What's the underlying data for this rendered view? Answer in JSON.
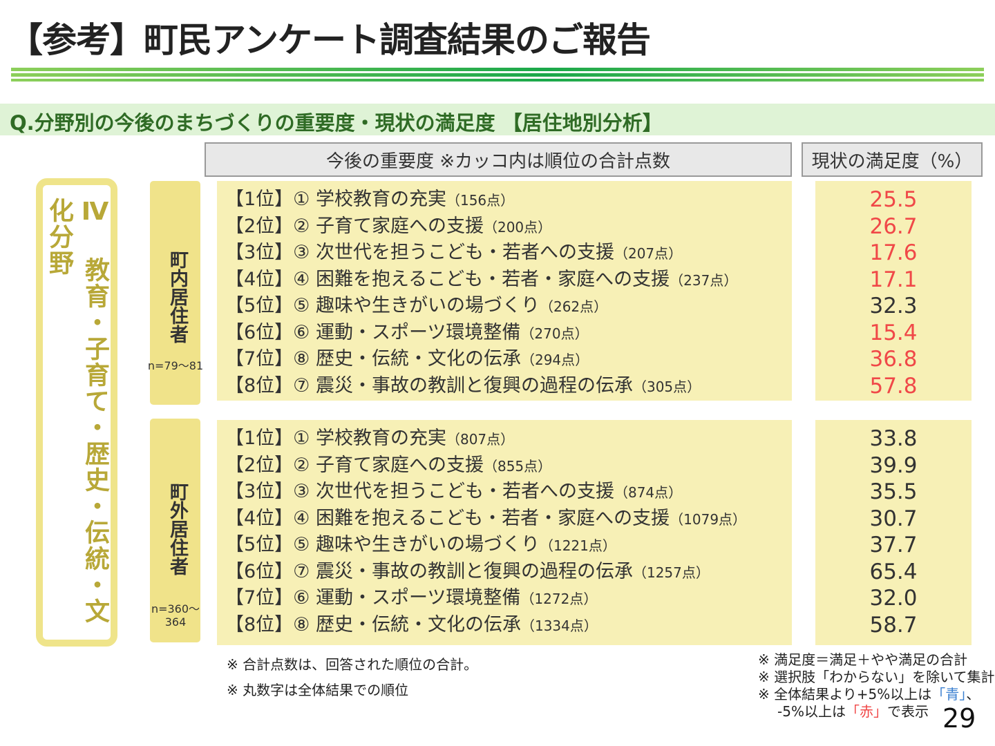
{
  "title": "【参考】町民アンケート調査結果のご報告",
  "question": "Q.分野別の今後のまちづくりの重要度・現状の満足度 【居住地別分析】",
  "header_importance": "今後の重要度 ※カッコ内は順位の合計点数",
  "header_satisfaction": "現状の満足度（%）",
  "category": "Ⅳ 教育・子育て・歴史・伝統・文化分野",
  "colors": {
    "red": "#f04848",
    "normal": "#333333",
    "blue": "#3a7fd0"
  },
  "groups": [
    {
      "label": "町内居住者",
      "n": "n=79～81",
      "rows": [
        {
          "rank": "【1位】① 学校教育の充実",
          "points": "（156点）",
          "value": "25.5",
          "color": "red"
        },
        {
          "rank": "【2位】② 子育て家庭への支援",
          "points": "（200点）",
          "value": "26.7",
          "color": "red"
        },
        {
          "rank": "【3位】③ 次世代を担うこども・若者への支援",
          "points": "（207点）",
          "value": "17.6",
          "color": "red"
        },
        {
          "rank": "【4位】④ 困難を抱えるこども・若者・家庭への支援",
          "points": "（237点）",
          "value": "17.1",
          "color": "red"
        },
        {
          "rank": "【5位】⑤ 趣味や生きがいの場づくり",
          "points": "（262点）",
          "value": "32.3",
          "color": "normal"
        },
        {
          "rank": "【6位】⑥ 運動・スポーツ環境整備",
          "points": "（270点）",
          "value": "15.4",
          "color": "red"
        },
        {
          "rank": "【7位】⑧ 歴史・伝統・文化の伝承",
          "points": "（294点）",
          "value": "36.8",
          "color": "red"
        },
        {
          "rank": "【8位】⑦ 震災・事故の教訓と復興の過程の伝承",
          "points": "（305点）",
          "value": "57.8",
          "color": "red"
        }
      ]
    },
    {
      "label": "町外居住者",
      "n": "n=360～364",
      "rows": [
        {
          "rank": "【1位】① 学校教育の充実",
          "points": "（807点）",
          "value": "33.8",
          "color": "normal"
        },
        {
          "rank": "【2位】② 子育て家庭への支援",
          "points": "（855点）",
          "value": "39.9",
          "color": "normal"
        },
        {
          "rank": "【3位】③ 次世代を担うこども・若者への支援",
          "points": "（874点）",
          "value": "35.5",
          "color": "normal"
        },
        {
          "rank": "【4位】④ 困難を抱えるこども・若者・家庭への支援",
          "points": "（1079点）",
          "value": "30.7",
          "color": "normal"
        },
        {
          "rank": "【5位】⑤ 趣味や生きがいの場づくり",
          "points": "（1221点）",
          "value": "37.7",
          "color": "normal"
        },
        {
          "rank": "【6位】⑦ 震災・事故の教訓と復興の過程の伝承",
          "points": "（1257点）",
          "value": "65.4",
          "color": "normal"
        },
        {
          "rank": "【7位】⑥ 運動・スポーツ環境整備",
          "points": "（1272点）",
          "value": "32.0",
          "color": "normal"
        },
        {
          "rank": "【8位】⑧ 歴史・伝統・文化の伝承",
          "points": "（1334点）",
          "value": "58.7",
          "color": "normal"
        }
      ]
    }
  ],
  "notes_left": [
    "※ 合計点数は、回答された順位の合計。",
    "※ 丸数字は全体結果での順位"
  ],
  "notes_right": {
    "l1": "※ 満足度＝満足＋やや満足の合計",
    "l2": "※ 選択肢「わからない」を除いて集計",
    "l3a": "※ 全体結果より+5%以上は",
    "l3b": "「青」",
    "l3c": "、",
    "l4a": "-5%以上は",
    "l4b": "「赤」",
    "l4c": "で表示"
  },
  "page_number": "29"
}
